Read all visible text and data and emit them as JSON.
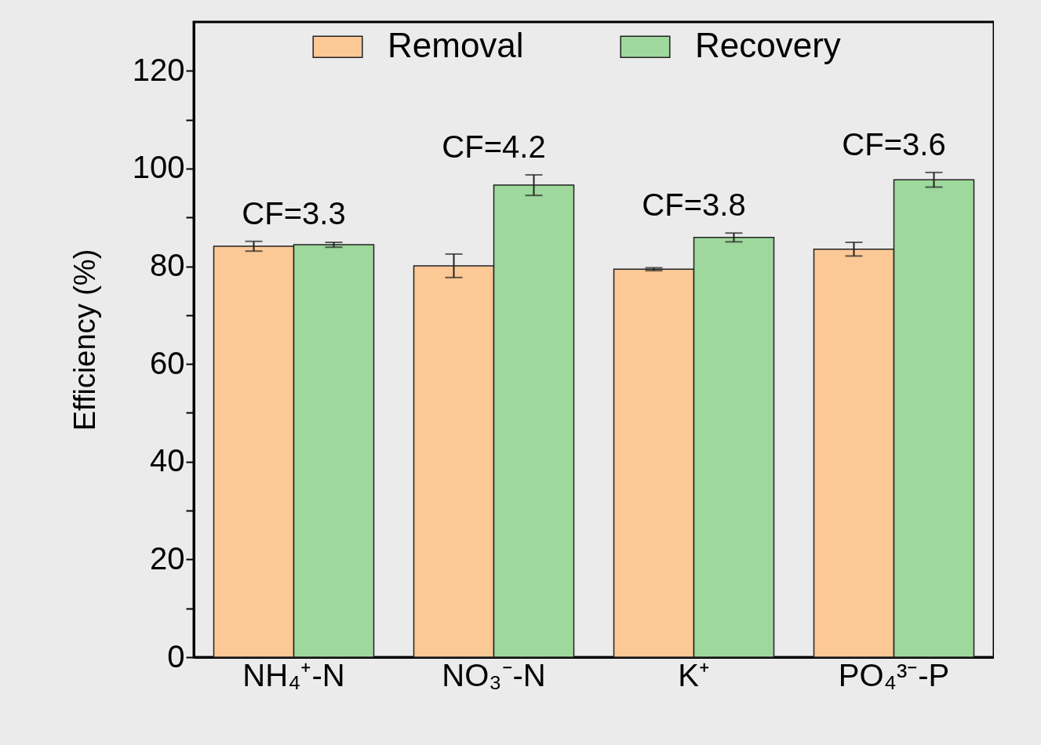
{
  "chart_data": {
    "type": "bar",
    "ylabel": "Efficiency (%)",
    "categories": [
      "NH₄⁺-N",
      "NO₃⁻-N",
      "K⁺",
      "PO₄³⁻-P"
    ],
    "series": [
      {
        "name": "Removal",
        "color": "#fcc896",
        "values": [
          84.1,
          80.1,
          79.4,
          83.5
        ],
        "errors": [
          1.0,
          2.4,
          0.3,
          1.4
        ]
      },
      {
        "name": "Recovery",
        "color": "#9ed89c",
        "values": [
          84.4,
          96.6,
          85.9,
          97.7
        ],
        "errors": [
          0.5,
          2.1,
          0.9,
          1.5
        ]
      }
    ],
    "annotations": [
      "CF=3.3",
      "CF=4.2",
      "CF=3.8",
      "CF=3.6"
    ],
    "ylim": [
      0,
      130
    ],
    "yticks": [
      0,
      {
        "value": 10,
        "label": null
      },
      20,
      {
        "value": 30,
        "label": null
      },
      40,
      {
        "value": 50,
        "label": null
      },
      60,
      {
        "value": 70,
        "label": null
      },
      80,
      {
        "value": 90,
        "label": null
      },
      100,
      {
        "value": 110,
        "label": null
      },
      120
    ],
    "grid": false,
    "legend": "top"
  }
}
